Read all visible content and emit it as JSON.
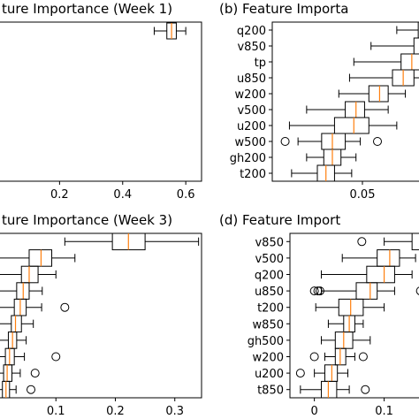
{
  "chart_data": [
    {
      "type": "boxplot",
      "title": "ture Importance (Week 1)",
      "xticks": [
        0.2,
        0.4,
        0.6
      ],
      "xlim": [
        0.0,
        0.65
      ],
      "categories": [],
      "boxes": [
        {
          "whislo": 0.5,
          "q1": 0.54,
          "med": 0.555,
          "q3": 0.57,
          "whishi": 0.6,
          "fliers": []
        }
      ]
    },
    {
      "type": "boxplot",
      "title": "(b) Feature Importa",
      "xticks": [
        0.05
      ],
      "xlim": [
        0.008,
        0.078
      ],
      "categories": [
        "q200",
        "v850",
        "tp",
        "u850",
        "w200",
        "v500",
        "u200",
        "w500",
        "gh200",
        "t200"
      ],
      "boxes": [
        {
          "whislo": 0.066,
          "q1": 0.076,
          "med": 0.079,
          "q3": 0.084,
          "whishi": 0.09,
          "fliers": []
        },
        {
          "whislo": 0.054,
          "q1": 0.074,
          "med": 0.077,
          "q3": 0.08,
          "whishi": 0.086,
          "fliers": []
        },
        {
          "whislo": 0.046,
          "q1": 0.068,
          "med": 0.073,
          "q3": 0.078,
          "whishi": 0.084,
          "fliers": []
        },
        {
          "whislo": 0.044,
          "q1": 0.064,
          "med": 0.069,
          "q3": 0.074,
          "whishi": 0.082,
          "fliers": []
        },
        {
          "whislo": 0.039,
          "q1": 0.053,
          "med": 0.058,
          "q3": 0.062,
          "whishi": 0.07,
          "fliers": []
        },
        {
          "whislo": 0.024,
          "q1": 0.042,
          "med": 0.047,
          "q3": 0.051,
          "whishi": 0.062,
          "fliers": []
        },
        {
          "whislo": 0.016,
          "q1": 0.037,
          "med": 0.046,
          "q3": 0.053,
          "whishi": 0.066,
          "fliers": []
        },
        {
          "whislo": 0.02,
          "q1": 0.031,
          "med": 0.036,
          "q3": 0.042,
          "whishi": 0.049,
          "fliers": [
            0.014,
            0.057
          ]
        },
        {
          "whislo": 0.024,
          "q1": 0.032,
          "med": 0.036,
          "q3": 0.04,
          "whishi": 0.047,
          "fliers": []
        },
        {
          "whislo": 0.017,
          "q1": 0.029,
          "med": 0.033,
          "q3": 0.037,
          "whishi": 0.045,
          "fliers": []
        }
      ]
    },
    {
      "type": "boxplot",
      "title": "ture Importance (Week 3)",
      "xticks": [
        0.1,
        0.2,
        0.3
      ],
      "xlim": [
        0.0,
        0.345
      ],
      "categories": [],
      "boxes": [
        {
          "whislo": 0.115,
          "q1": 0.195,
          "med": 0.222,
          "q3": 0.25,
          "whishi": 0.34,
          "fliers": []
        },
        {
          "whislo": 0.0,
          "q1": 0.055,
          "med": 0.075,
          "q3": 0.093,
          "whishi": 0.132,
          "fliers": []
        },
        {
          "whislo": 0.0,
          "q1": 0.042,
          "med": 0.055,
          "q3": 0.07,
          "whishi": 0.1,
          "fliers": []
        },
        {
          "whislo": 0.0,
          "q1": 0.034,
          "med": 0.045,
          "q3": 0.055,
          "whishi": 0.077,
          "fliers": []
        },
        {
          "whislo": 0.0,
          "q1": 0.03,
          "med": 0.04,
          "q3": 0.05,
          "whishi": 0.076,
          "fliers": [
            0.115
          ]
        },
        {
          "whislo": 0.0,
          "q1": 0.025,
          "med": 0.032,
          "q3": 0.042,
          "whishi": 0.062,
          "fliers": []
        },
        {
          "whislo": 0.0,
          "q1": 0.02,
          "med": 0.027,
          "q3": 0.034,
          "whishi": 0.05,
          "fliers": []
        },
        {
          "whislo": 0.0,
          "q1": 0.015,
          "med": 0.022,
          "q3": 0.03,
          "whishi": 0.047,
          "fliers": [
            0.1
          ]
        },
        {
          "whislo": 0.0,
          "q1": 0.012,
          "med": 0.018,
          "q3": 0.026,
          "whishi": 0.04,
          "fliers": [
            0.065
          ]
        },
        {
          "whislo": 0.0,
          "q1": 0.01,
          "med": 0.016,
          "q3": 0.022,
          "whishi": 0.033,
          "fliers": [
            0.058
          ]
        }
      ]
    },
    {
      "type": "boxplot",
      "title": "(d) Feature Import",
      "xticks": [
        0.0,
        0.1
      ],
      "xlim": [
        -0.035,
        0.155
      ],
      "categories": [
        "v850",
        "v500",
        "q200",
        "u850",
        "t200",
        "w850",
        "gh500",
        "w200",
        "u200",
        "t850"
      ],
      "boxes": [
        {
          "whislo": 0.1,
          "q1": 0.14,
          "med": 0.155,
          "q3": 0.17,
          "whishi": 0.19,
          "fliers": [
            0.068
          ]
        },
        {
          "whislo": 0.04,
          "q1": 0.09,
          "med": 0.108,
          "q3": 0.122,
          "whishi": 0.145,
          "fliers": []
        },
        {
          "whislo": 0.01,
          "q1": 0.075,
          "med": 0.1,
          "q3": 0.115,
          "whishi": 0.14,
          "fliers": []
        },
        {
          "whislo": 0.01,
          "q1": 0.06,
          "med": 0.08,
          "q3": 0.09,
          "whishi": 0.115,
          "fliers": [
            0.0,
            0.005,
            0.008,
            0.152
          ]
        },
        {
          "whislo": 0.002,
          "q1": 0.035,
          "med": 0.052,
          "q3": 0.07,
          "whishi": 0.1,
          "fliers": []
        },
        {
          "whislo": 0.02,
          "q1": 0.042,
          "med": 0.05,
          "q3": 0.058,
          "whishi": 0.07,
          "fliers": []
        },
        {
          "whislo": 0.01,
          "q1": 0.03,
          "med": 0.042,
          "q3": 0.055,
          "whishi": 0.08,
          "fliers": []
        },
        {
          "whislo": 0.015,
          "q1": 0.03,
          "med": 0.037,
          "q3": 0.045,
          "whishi": 0.058,
          "fliers": [
            0.0,
            0.07
          ]
        },
        {
          "whislo": 0.0,
          "q1": 0.015,
          "med": 0.025,
          "q3": 0.033,
          "whishi": 0.048,
          "fliers": [
            -0.02
          ]
        },
        {
          "whislo": -0.02,
          "q1": 0.01,
          "med": 0.02,
          "q3": 0.032,
          "whishi": 0.05,
          "fliers": [
            0.073
          ]
        }
      ]
    }
  ],
  "colors": {
    "median": "#ff7f0e",
    "box": "#000000",
    "background": "#ffffff"
  }
}
